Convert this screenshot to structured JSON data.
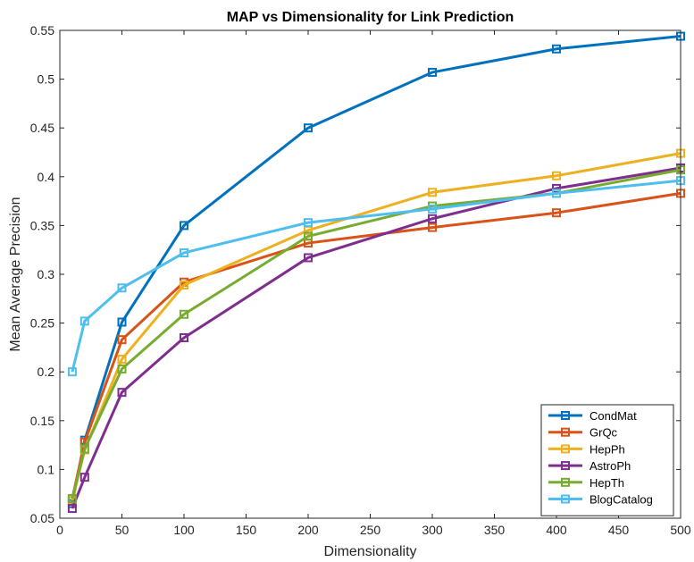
{
  "chart_data": {
    "type": "line",
    "title": "MAP vs Dimensionality for Link Prediction",
    "xlabel": "Dimensionality",
    "ylabel": "Mean Average Precision",
    "xlim": [
      0,
      500
    ],
    "ylim": [
      0.05,
      0.55
    ],
    "xticks": [
      0,
      50,
      100,
      150,
      200,
      250,
      300,
      350,
      400,
      450,
      500
    ],
    "xtick_labels": [
      "0",
      "50",
      "100",
      "150",
      "200",
      "250",
      "300",
      "350",
      "400",
      "450",
      "500"
    ],
    "yticks": [
      0.05,
      0.1,
      0.15,
      0.2,
      0.25,
      0.3,
      0.35,
      0.4,
      0.45,
      0.5,
      0.55
    ],
    "ytick_labels": [
      "0.05",
      "0.1",
      "0.15",
      "0.2",
      "0.25",
      "0.3",
      "0.35",
      "0.4",
      "0.45",
      "0.5",
      "0.55"
    ],
    "grid": false,
    "legend_position": "bottom-right",
    "marker": "square",
    "x": [
      10,
      20,
      50,
      100,
      200,
      300,
      400,
      500
    ],
    "series": [
      {
        "name": "CondMat",
        "color": "#0072BD",
        "values": [
          0.065,
          0.13,
          0.251,
          0.35,
          0.45,
          0.507,
          0.531,
          0.544
        ]
      },
      {
        "name": "GrQc",
        "color": "#D95319",
        "values": [
          0.07,
          0.128,
          0.233,
          0.292,
          0.332,
          0.348,
          0.363,
          0.383
        ]
      },
      {
        "name": "HepPh",
        "color": "#EDB120",
        "values": [
          0.068,
          0.12,
          0.213,
          0.289,
          0.345,
          0.384,
          0.401,
          0.424
        ]
      },
      {
        "name": "AstroPh",
        "color": "#7E2F8E",
        "values": [
          0.06,
          0.092,
          0.179,
          0.235,
          0.317,
          0.357,
          0.388,
          0.409
        ]
      },
      {
        "name": "HepTh",
        "color": "#77AC30",
        "values": [
          0.07,
          0.121,
          0.203,
          0.259,
          0.339,
          0.37,
          0.383,
          0.407
        ]
      },
      {
        "name": "BlogCatalog",
        "color": "#4DBEEE",
        "values": [
          0.2,
          0.252,
          0.286,
          0.322,
          0.353,
          0.367,
          0.383,
          0.396
        ]
      }
    ]
  }
}
